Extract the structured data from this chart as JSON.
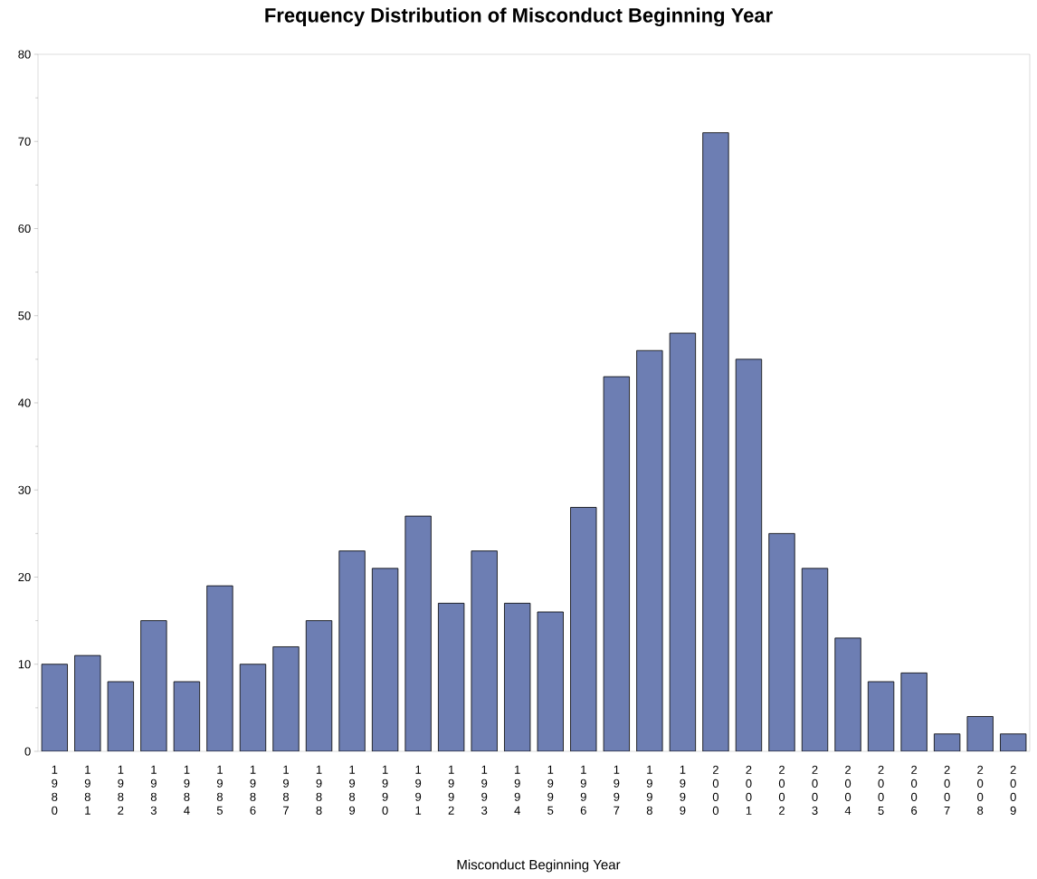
{
  "chart_data": {
    "type": "bar",
    "title": "Frequency Distribution of Misconduct Beginning Year",
    "xlabel": "Misconduct Beginning Year",
    "categories": [
      "1980",
      "1981",
      "1982",
      "1983",
      "1984",
      "1985",
      "1986",
      "1987",
      "1988",
      "1989",
      "1990",
      "1991",
      "1992",
      "1993",
      "1994",
      "1995",
      "1996",
      "1997",
      "1998",
      "1999",
      "2000",
      "2001",
      "2002",
      "2003",
      "2004",
      "2005",
      "2006",
      "2007",
      "2008",
      "2009"
    ],
    "values": [
      10,
      11,
      8,
      15,
      8,
      19,
      10,
      12,
      15,
      23,
      21,
      27,
      17,
      23,
      17,
      16,
      28,
      43,
      46,
      48,
      71,
      45,
      25,
      21,
      13,
      8,
      9,
      2,
      4,
      2
    ],
    "color": "#6d7eb3",
    "ylim": [
      0,
      80
    ],
    "yticks": [
      0,
      10,
      20,
      30,
      40,
      50,
      60,
      70,
      80
    ]
  }
}
